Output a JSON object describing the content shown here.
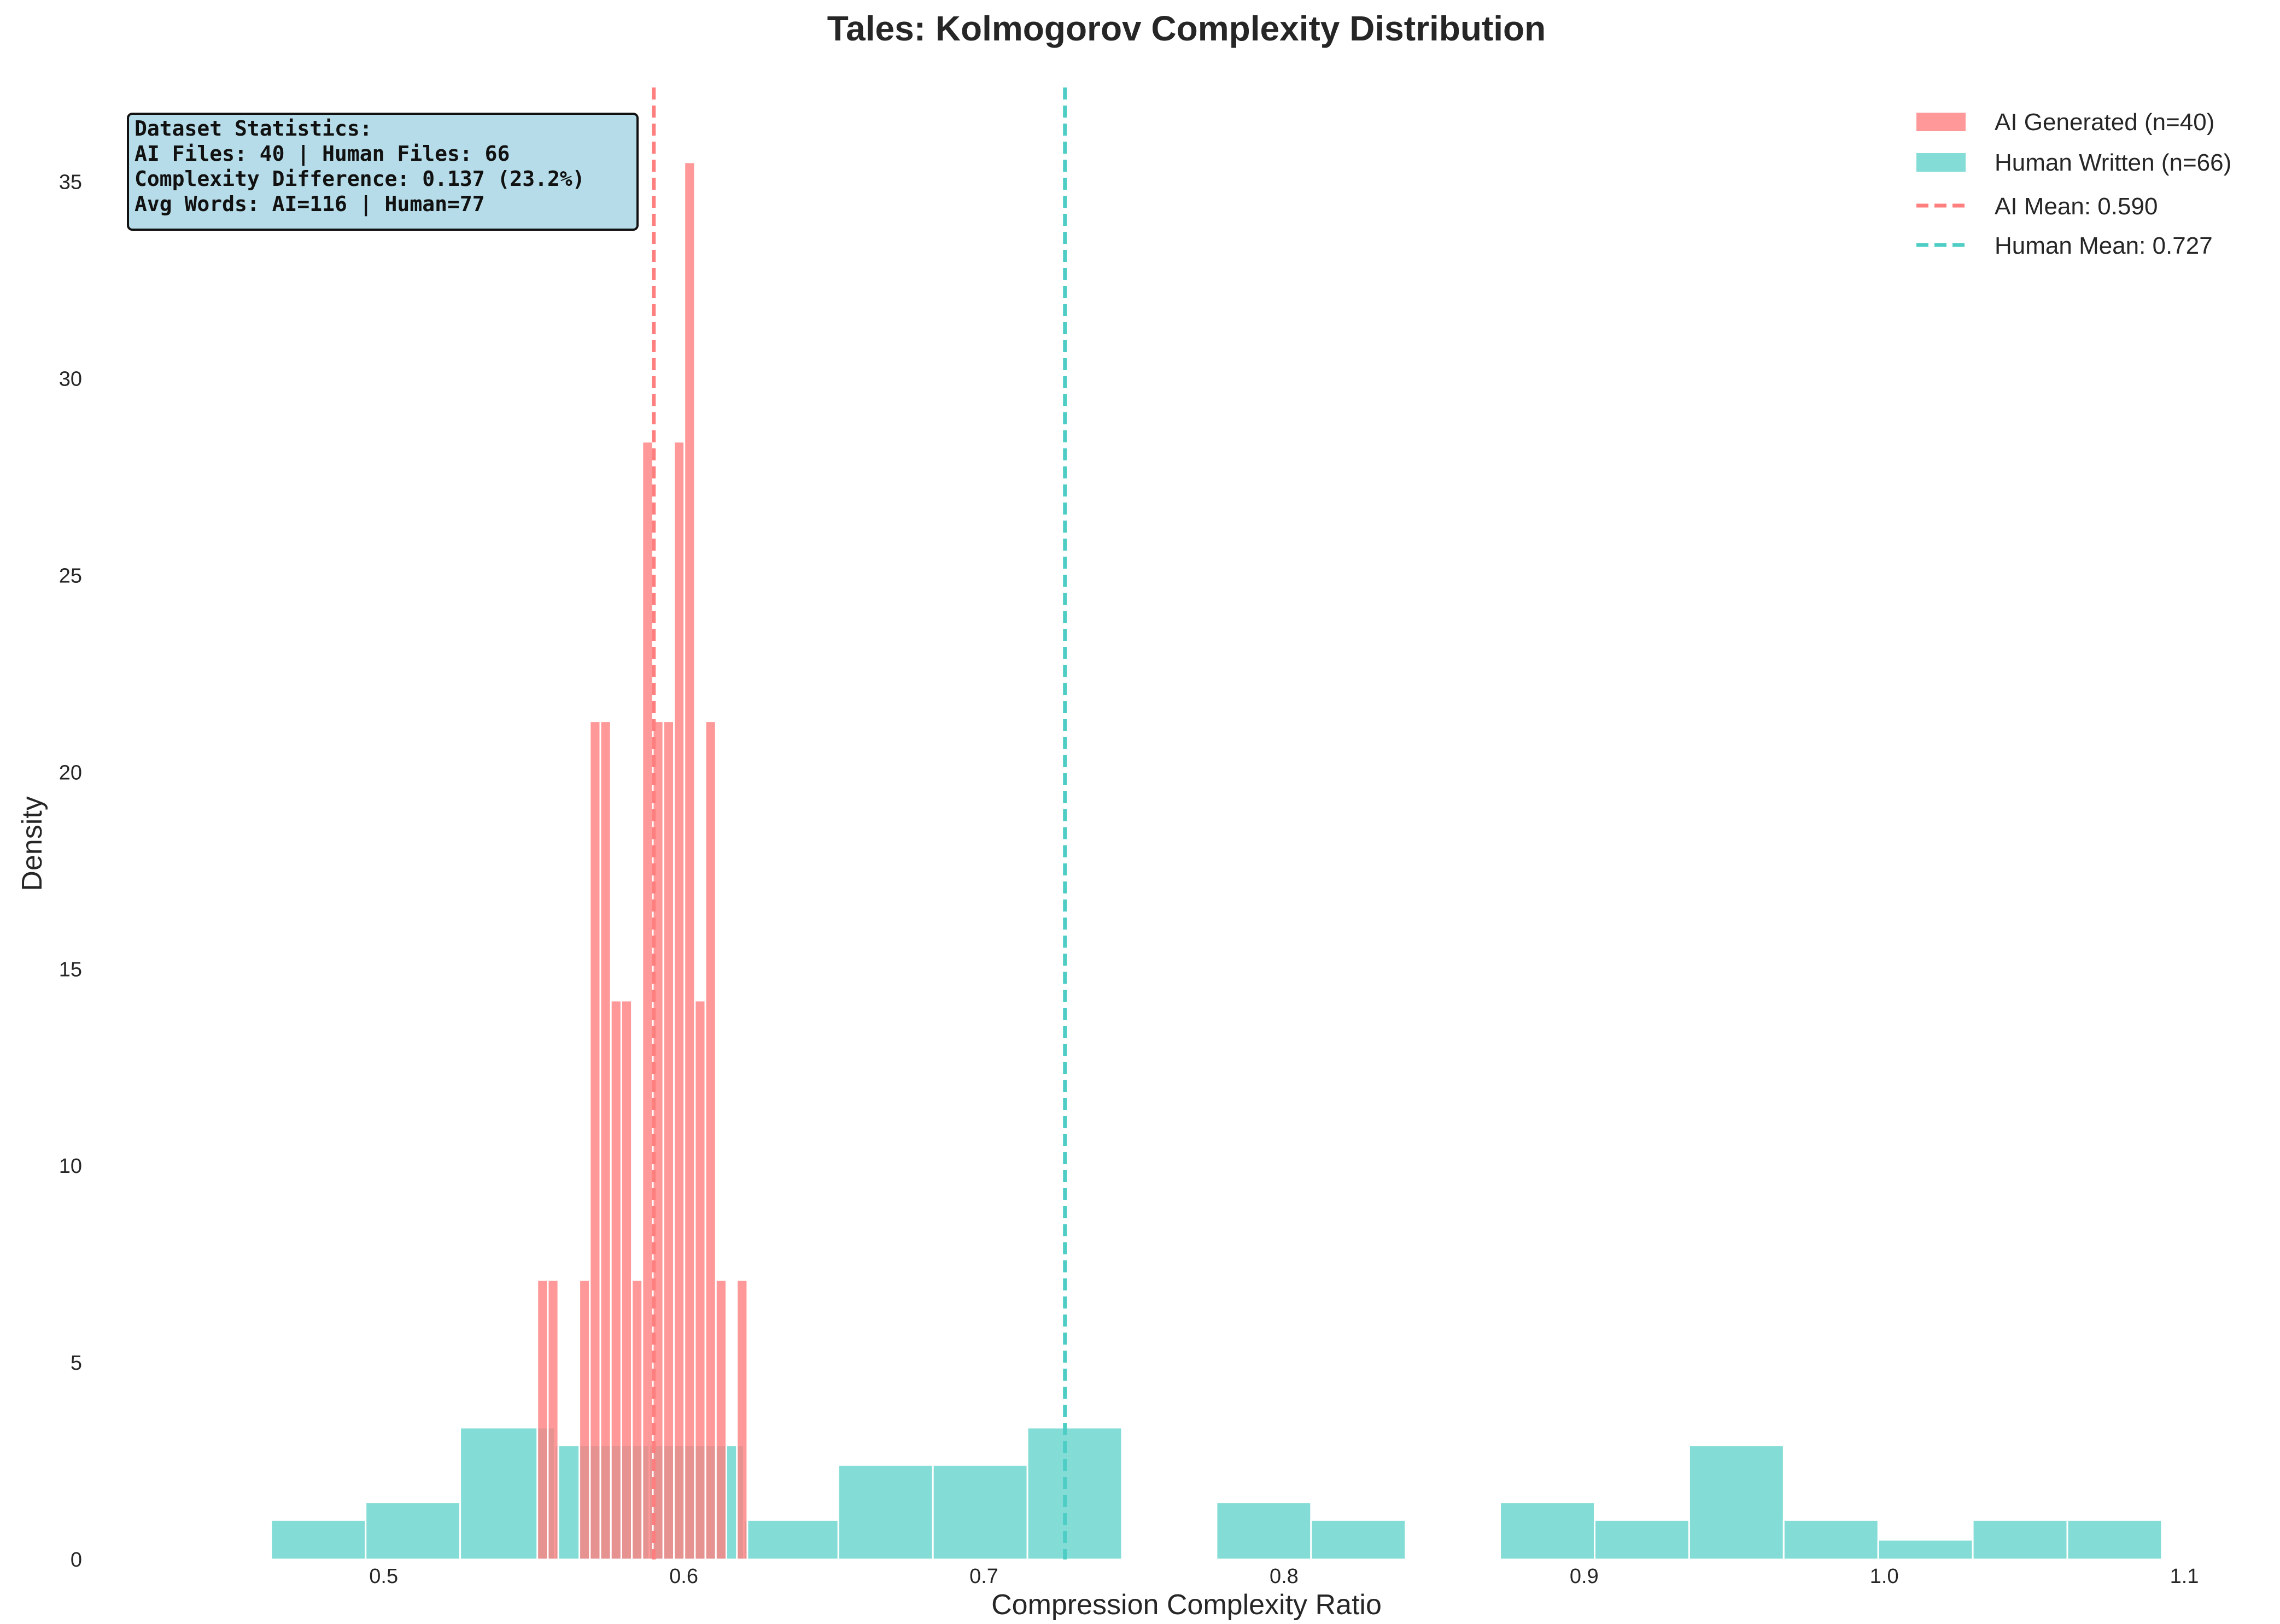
{
  "chart_data": {
    "type": "bar",
    "title": "Tales: Kolmogorov Complexity Distribution",
    "xlabel": "Compression Complexity Ratio",
    "ylabel": "Density",
    "xlim": [
      0.425,
      1.11
    ],
    "ylim": [
      0,
      37.4
    ],
    "x_ticks": [
      "0.5",
      "0.6",
      "0.7",
      "0.8",
      "0.9",
      "1.0",
      "1.1"
    ],
    "y_ticks": [
      "0",
      "5",
      "10",
      "15",
      "20",
      "25",
      "30",
      "35"
    ],
    "grid": false,
    "legend_position": "top-right",
    "series": [
      {
        "name": "AI Generated (n=40)",
        "color": "#ff7f7f",
        "bins": [
          {
            "x0": 0.5512,
            "x1": 0.5547,
            "value": 7.1
          },
          {
            "x0": 0.5547,
            "x1": 0.5582,
            "value": 7.1
          },
          {
            "x0": 0.5582,
            "x1": 0.5617,
            "value": 0
          },
          {
            "x0": 0.5617,
            "x1": 0.5652,
            "value": 0
          },
          {
            "x0": 0.5652,
            "x1": 0.5687,
            "value": 7.1
          },
          {
            "x0": 0.5687,
            "x1": 0.5722,
            "value": 21.3
          },
          {
            "x0": 0.5722,
            "x1": 0.5757,
            "value": 21.3
          },
          {
            "x0": 0.5757,
            "x1": 0.5792,
            "value": 14.2
          },
          {
            "x0": 0.5792,
            "x1": 0.5827,
            "value": 14.2
          },
          {
            "x0": 0.5827,
            "x1": 0.5862,
            "value": 7.1
          },
          {
            "x0": 0.5862,
            "x1": 0.5897,
            "value": 28.4
          },
          {
            "x0": 0.5897,
            "x1": 0.5932,
            "value": 21.3
          },
          {
            "x0": 0.5932,
            "x1": 0.5967,
            "value": 21.3
          },
          {
            "x0": 0.5967,
            "x1": 0.6002,
            "value": 28.4
          },
          {
            "x0": 0.6002,
            "x1": 0.6037,
            "value": 35.5
          },
          {
            "x0": 0.6037,
            "x1": 0.6072,
            "value": 14.2
          },
          {
            "x0": 0.6072,
            "x1": 0.6107,
            "value": 21.3
          },
          {
            "x0": 0.6107,
            "x1": 0.6142,
            "value": 7.1
          },
          {
            "x0": 0.6142,
            "x1": 0.6177,
            "value": 0
          },
          {
            "x0": 0.6177,
            "x1": 0.6212,
            "value": 7.1
          }
        ]
      },
      {
        "name": "Human Written (n=66)",
        "color": "#4ecdc4",
        "bins": [
          {
            "x0": 0.4625,
            "x1": 0.494,
            "value": 1.0
          },
          {
            "x0": 0.494,
            "x1": 0.5255,
            "value": 1.45
          },
          {
            "x0": 0.5255,
            "x1": 0.557,
            "value": 3.35
          },
          {
            "x0": 0.557,
            "x1": 0.5885,
            "value": 2.9
          },
          {
            "x0": 0.5885,
            "x1": 0.62,
            "value": 2.9
          },
          {
            "x0": 0.62,
            "x1": 0.6515,
            "value": 1.0
          },
          {
            "x0": 0.6515,
            "x1": 0.683,
            "value": 2.4
          },
          {
            "x0": 0.683,
            "x1": 0.7145,
            "value": 2.4
          },
          {
            "x0": 0.7145,
            "x1": 0.746,
            "value": 3.35
          },
          {
            "x0": 0.746,
            "x1": 0.7775,
            "value": 0
          },
          {
            "x0": 0.7775,
            "x1": 0.809,
            "value": 1.45
          },
          {
            "x0": 0.809,
            "x1": 0.8405,
            "value": 1.0
          },
          {
            "x0": 0.8405,
            "x1": 0.872,
            "value": 0
          },
          {
            "x0": 0.872,
            "x1": 0.9035,
            "value": 1.45
          },
          {
            "x0": 0.9035,
            "x1": 0.935,
            "value": 1.0
          },
          {
            "x0": 0.935,
            "x1": 0.9665,
            "value": 2.9
          },
          {
            "x0": 0.9665,
            "x1": 0.998,
            "value": 1.0
          },
          {
            "x0": 0.998,
            "x1": 1.0295,
            "value": 0.5
          },
          {
            "x0": 1.0295,
            "x1": 1.061,
            "value": 1.0
          },
          {
            "x0": 1.061,
            "x1": 1.0925,
            "value": 1.0
          }
        ]
      }
    ],
    "mean_lines": [
      {
        "name": "AI Mean: 0.590",
        "x": 0.59,
        "color": "#ff7f7f"
      },
      {
        "name": "Human Mean: 0.727",
        "x": 0.727,
        "color": "#4ecdc4"
      }
    ],
    "stats_box": {
      "lines": [
        "Dataset Statistics:",
        "AI Files: 40 | Human Files: 66",
        "Complexity Difference: 0.137 (23.2%)",
        "Avg Words: AI=116 | Human=77"
      ],
      "background": "#add8e6"
    }
  }
}
